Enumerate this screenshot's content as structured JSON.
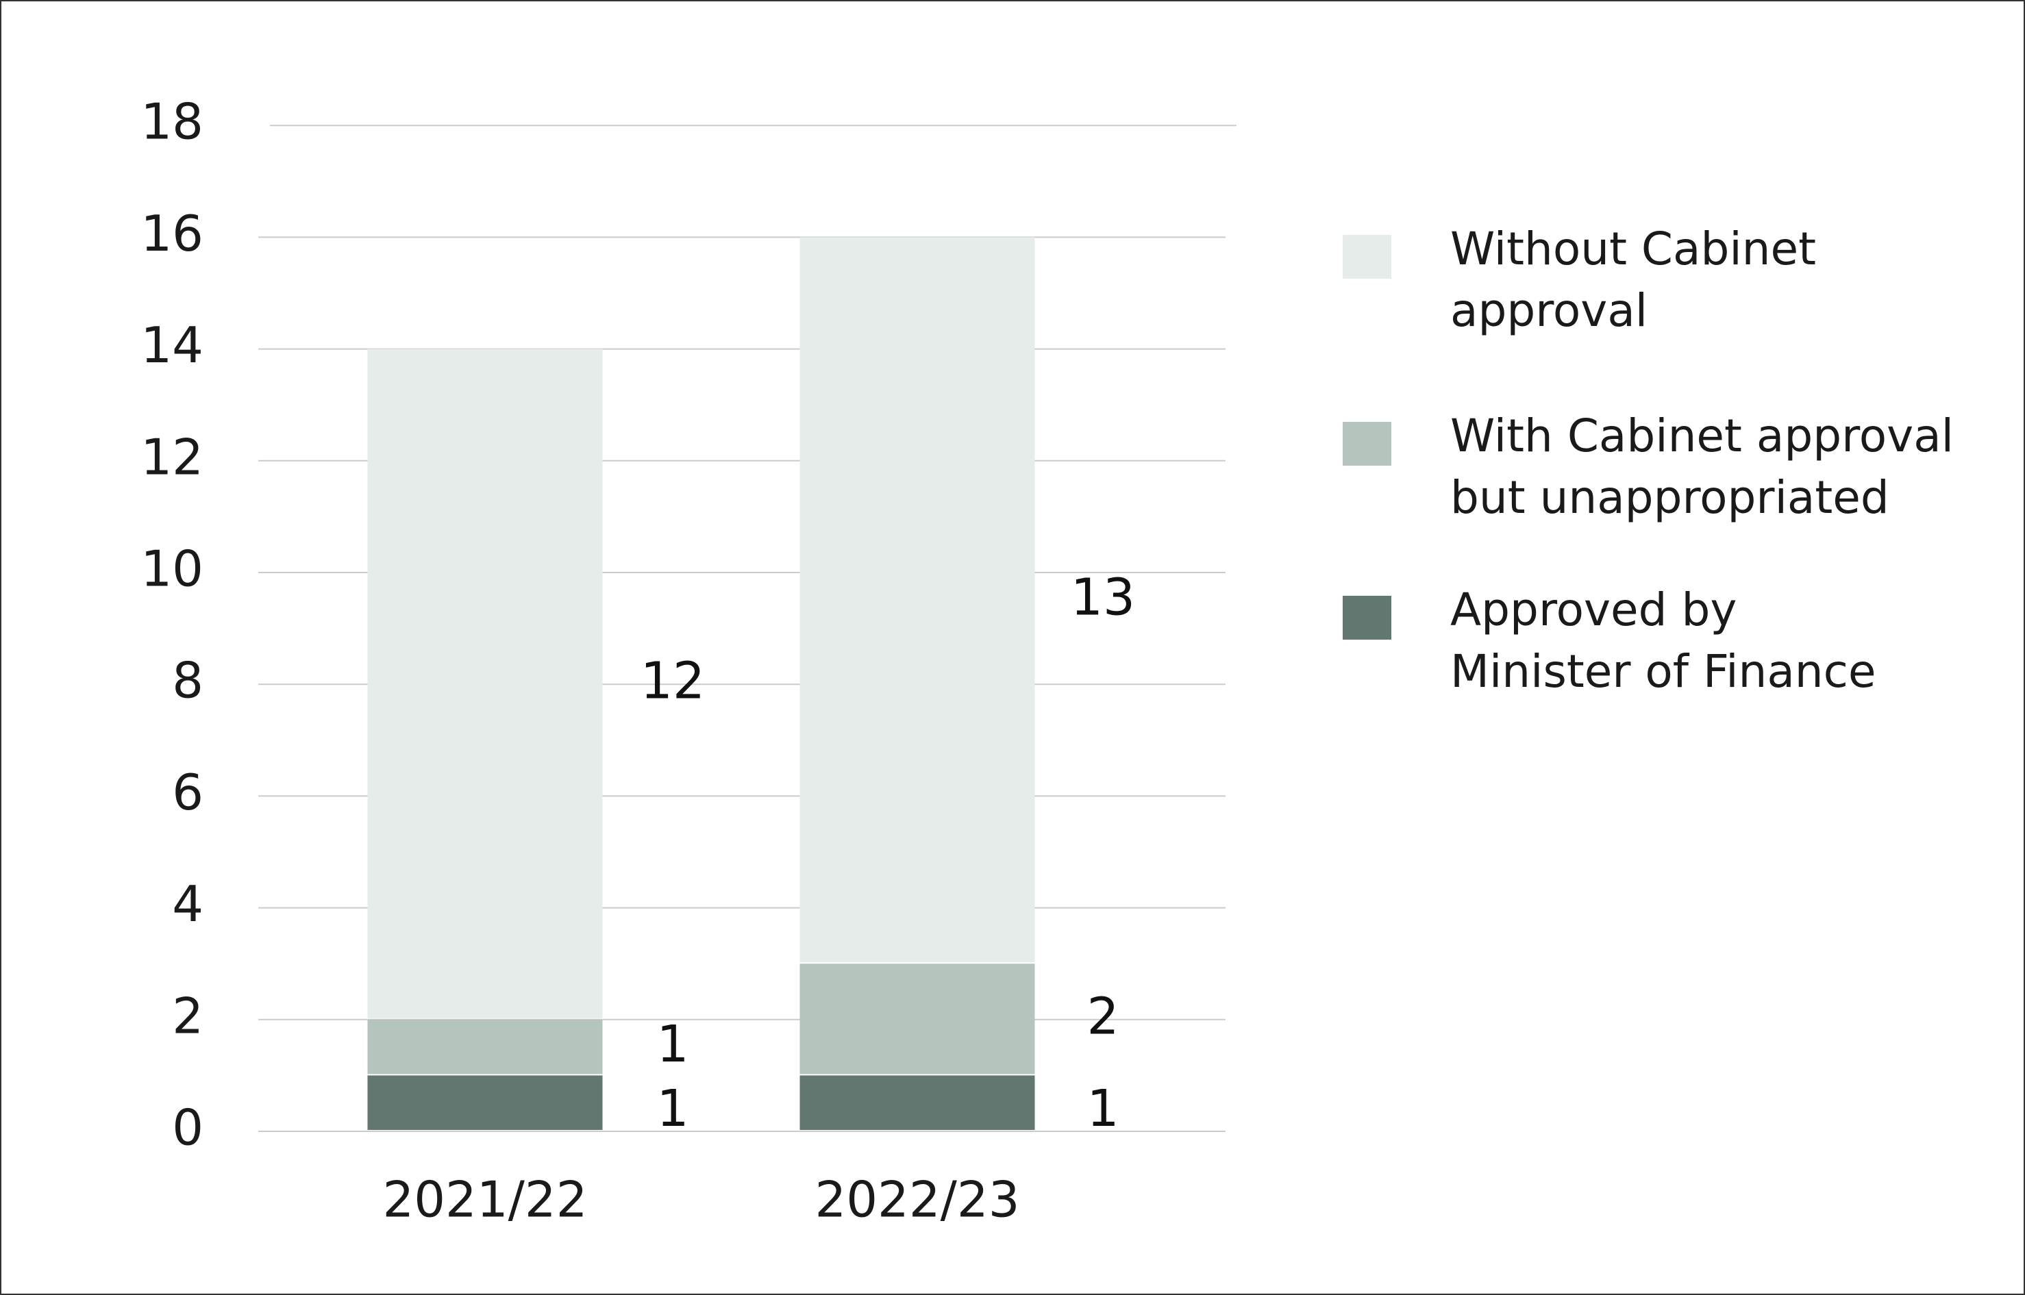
{
  "chart_data": {
    "type": "bar",
    "stacked": true,
    "categories": [
      "2021/22",
      "2022/23"
    ],
    "series": [
      {
        "name": "Approved by Minister of Finance",
        "values": [
          1,
          1
        ],
        "color": "#627770"
      },
      {
        "name": "With Cabinet approval but unappropriated",
        "values": [
          1,
          2
        ],
        "color": "#b5c5bd"
      },
      {
        "name": "Without Cabinet approval",
        "values": [
          12,
          13
        ],
        "color": "#e6ecea"
      }
    ],
    "legend_order": [
      {
        "lines": [
          "Without Cabinet",
          "approval"
        ],
        "color": "#e6ecea"
      },
      {
        "lines": [
          "With Cabinet approval",
          "but unappropriated"
        ],
        "color": "#b5c5bd"
      },
      {
        "lines": [
          "Approved by",
          "Minister of Finance"
        ],
        "color": "#627770"
      }
    ],
    "yticks": [
      "0",
      "2",
      "4",
      "6",
      "8",
      "10",
      "12",
      "14",
      "16",
      "18"
    ],
    "ylim": [
      0,
      18
    ],
    "grid": true,
    "legend_position": "right",
    "title": "",
    "xlabel": "",
    "ylabel": "",
    "colors": {
      "gridline": "#cccccc",
      "text": "#1a1a1a"
    }
  }
}
